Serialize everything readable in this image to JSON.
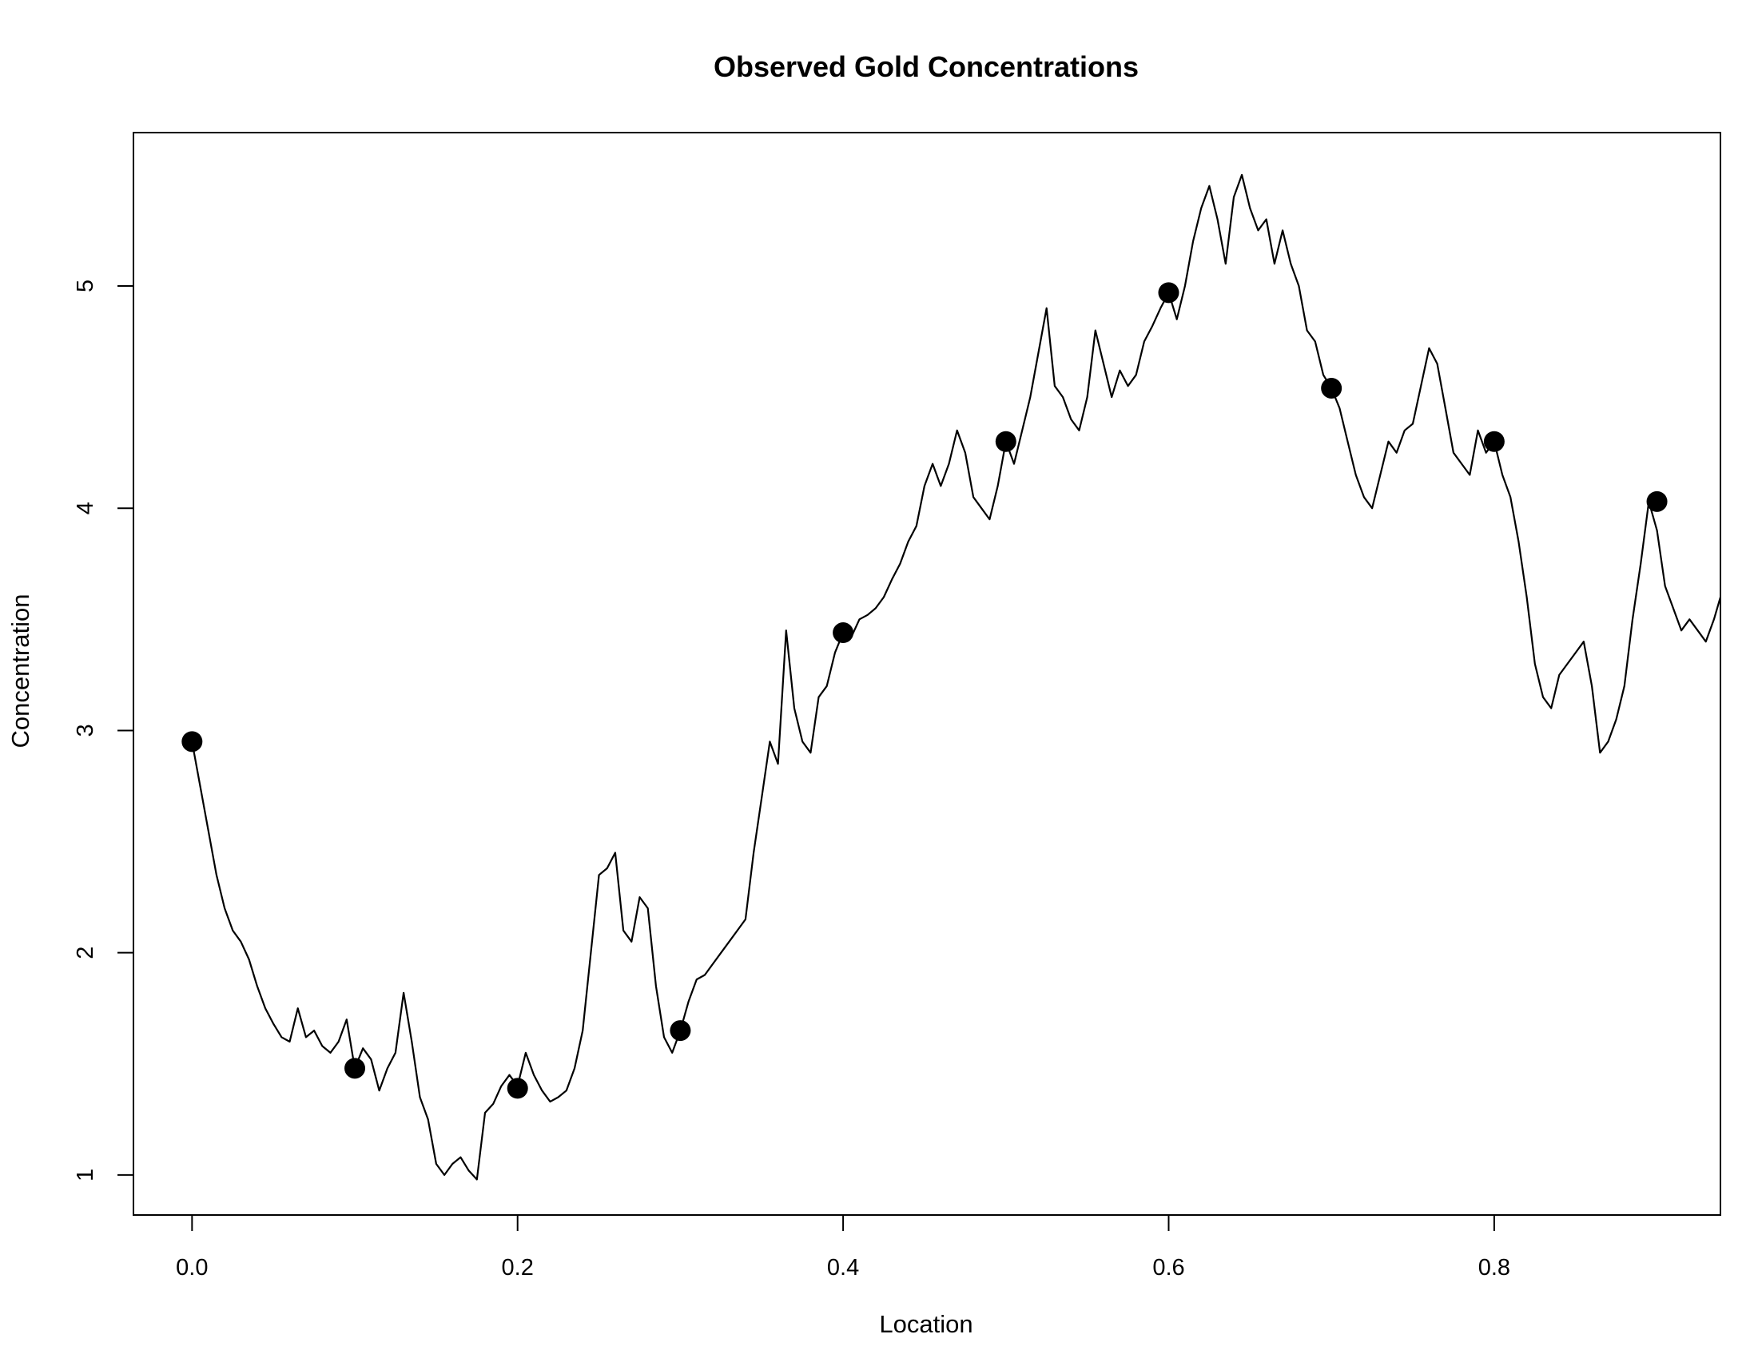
{
  "chart_data": {
    "type": "line",
    "title": "Observed Gold Concentrations",
    "xlabel": "Location",
    "ylabel": "Concentration",
    "xlim": [
      -0.036,
      0.939
    ],
    "ylim": [
      0.82,
      5.69
    ],
    "x_ticks": [
      0.0,
      0.2,
      0.4,
      0.6,
      0.8
    ],
    "x_tick_labels": [
      "0.0",
      "0.2",
      "0.4",
      "0.6",
      "0.8"
    ],
    "y_ticks": [
      1,
      2,
      3,
      4,
      5
    ],
    "y_tick_labels": [
      "1",
      "2",
      "3",
      "4",
      "5"
    ],
    "grid": false,
    "line_color": "#000000",
    "point_color": "#000000",
    "series": [
      {
        "kind": "line",
        "x": [
          0.0,
          0.005,
          0.01,
          0.015,
          0.02,
          0.025,
          0.03,
          0.035,
          0.04,
          0.045,
          0.05,
          0.055,
          0.06,
          0.065,
          0.07,
          0.075,
          0.08,
          0.085,
          0.09,
          0.095,
          0.1,
          0.105,
          0.11,
          0.115,
          0.12,
          0.125,
          0.13,
          0.135,
          0.14,
          0.145,
          0.15,
          0.155,
          0.16,
          0.165,
          0.17,
          0.175,
          0.18,
          0.185,
          0.19,
          0.195,
          0.2,
          0.205,
          0.21,
          0.215,
          0.22,
          0.225,
          0.23,
          0.235,
          0.24,
          0.245,
          0.25,
          0.255,
          0.26,
          0.265,
          0.27,
          0.275,
          0.28,
          0.285,
          0.29,
          0.295,
          0.3,
          0.305,
          0.31,
          0.315,
          0.32,
          0.325,
          0.33,
          0.335,
          0.34,
          0.345,
          0.35,
          0.355,
          0.36,
          0.365,
          0.37,
          0.375,
          0.38,
          0.385,
          0.39,
          0.395,
          0.4,
          0.405,
          0.41,
          0.415,
          0.42,
          0.425,
          0.43,
          0.435,
          0.44,
          0.445,
          0.45,
          0.455,
          0.46,
          0.465,
          0.47,
          0.475,
          0.48,
          0.485,
          0.49,
          0.495,
          0.5,
          0.505,
          0.51,
          0.515,
          0.52,
          0.525,
          0.53,
          0.535,
          0.54,
          0.545,
          0.55,
          0.555,
          0.56,
          0.565,
          0.57,
          0.575,
          0.58,
          0.585,
          0.59,
          0.595,
          0.6,
          0.605,
          0.61,
          0.615,
          0.62,
          0.625,
          0.63,
          0.635,
          0.64,
          0.645,
          0.65,
          0.655,
          0.66,
          0.665,
          0.67,
          0.675,
          0.68,
          0.685,
          0.69,
          0.695,
          0.7,
          0.705,
          0.71,
          0.715,
          0.72,
          0.725,
          0.73,
          0.735,
          0.74,
          0.745,
          0.75,
          0.755,
          0.76,
          0.765,
          0.77,
          0.775,
          0.78,
          0.785,
          0.79,
          0.795,
          0.8,
          0.805,
          0.81,
          0.815,
          0.82,
          0.825,
          0.83,
          0.835,
          0.84,
          0.845,
          0.85,
          0.855,
          0.86,
          0.865,
          0.87,
          0.875,
          0.88,
          0.885,
          0.89,
          0.895,
          0.9,
          0.905,
          0.91,
          0.915,
          0.92,
          0.925,
          0.93,
          0.935,
          0.939
        ],
        "y": [
          2.95,
          2.75,
          2.55,
          2.35,
          2.2,
          2.1,
          2.05,
          1.97,
          1.85,
          1.75,
          1.68,
          1.62,
          1.6,
          1.75,
          1.62,
          1.65,
          1.58,
          1.55,
          1.6,
          1.7,
          1.48,
          1.57,
          1.52,
          1.38,
          1.48,
          1.55,
          1.82,
          1.6,
          1.35,
          1.25,
          1.05,
          1.0,
          1.05,
          1.08,
          1.02,
          0.98,
          1.28,
          1.32,
          1.4,
          1.45,
          1.4,
          1.55,
          1.45,
          1.38,
          1.33,
          1.35,
          1.38,
          1.48,
          1.65,
          2.0,
          2.35,
          2.38,
          2.45,
          2.1,
          2.05,
          2.25,
          2.2,
          1.85,
          1.62,
          1.55,
          1.65,
          1.78,
          1.88,
          1.9,
          1.95,
          2.0,
          2.05,
          2.1,
          2.15,
          2.45,
          2.7,
          2.95,
          2.85,
          3.45,
          3.1,
          2.95,
          2.9,
          3.15,
          3.2,
          3.35,
          3.44,
          3.42,
          3.5,
          3.52,
          3.55,
          3.6,
          3.68,
          3.75,
          3.85,
          3.92,
          4.1,
          4.2,
          4.1,
          4.2,
          4.35,
          4.25,
          4.05,
          4.0,
          3.95,
          4.1,
          4.3,
          4.2,
          4.35,
          4.5,
          4.7,
          4.9,
          4.55,
          4.5,
          4.4,
          4.35,
          4.5,
          4.8,
          4.65,
          4.5,
          4.62,
          4.55,
          4.6,
          4.75,
          4.82,
          4.9,
          4.97,
          4.85,
          5.0,
          5.2,
          5.35,
          5.45,
          5.3,
          5.1,
          5.4,
          5.5,
          5.35,
          5.25,
          5.3,
          5.1,
          5.25,
          5.1,
          5.0,
          4.8,
          4.75,
          4.6,
          4.54,
          4.45,
          4.3,
          4.15,
          4.05,
          4.0,
          4.15,
          4.3,
          4.25,
          4.35,
          4.38,
          4.55,
          4.72,
          4.65,
          4.45,
          4.25,
          4.2,
          4.15,
          4.35,
          4.25,
          4.3,
          4.15,
          4.05,
          3.85,
          3.6,
          3.3,
          3.15,
          3.1,
          3.25,
          3.3,
          3.35,
          3.4,
          3.2,
          2.9,
          2.95,
          3.05,
          3.2,
          3.5,
          3.75,
          4.03,
          3.9,
          3.65,
          3.55,
          3.45,
          3.5,
          3.45,
          3.4,
          3.5,
          3.6
        ]
      },
      {
        "kind": "points",
        "x": [
          0.0,
          0.1,
          0.2,
          0.3,
          0.4,
          0.5,
          0.6,
          0.7,
          0.8,
          0.9
        ],
        "y": [
          2.95,
          1.48,
          1.39,
          1.65,
          3.44,
          4.3,
          4.97,
          4.54,
          4.3,
          4.03
        ]
      }
    ]
  }
}
